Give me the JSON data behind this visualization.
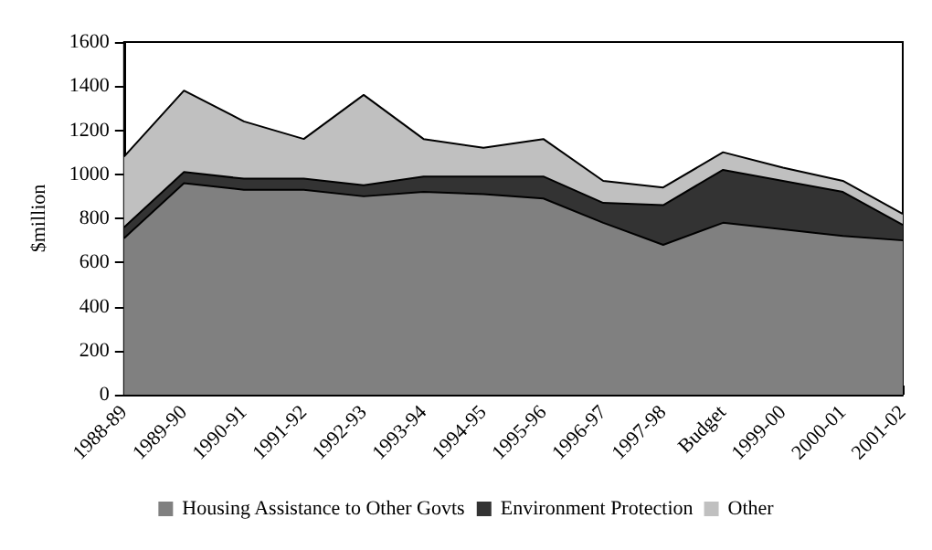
{
  "chart_data": {
    "type": "area",
    "stacked": true,
    "ylabel": "$million",
    "categories": [
      "1988-89",
      "1989-90",
      "1990-91",
      "1991-92",
      "1992-93",
      "1993-94",
      "1994-95",
      "1995-96",
      "1996-97",
      "1997-98",
      "Budget",
      "1999-00",
      "2000-01",
      "2001-02"
    ],
    "series": [
      {
        "name": "Housing Assistance to Other Govts",
        "color": "#808080",
        "values": [
          710,
          960,
          930,
          930,
          900,
          920,
          910,
          890,
          780,
          680,
          780,
          750,
          720,
          700
        ]
      },
      {
        "name": "Environment Protection",
        "color": "#333333",
        "values": [
          50,
          50,
          50,
          50,
          50,
          70,
          80,
          100,
          90,
          180,
          240,
          220,
          200,
          70
        ]
      },
      {
        "name": "Other",
        "color": "#c0c0c0",
        "values": [
          320,
          370,
          260,
          180,
          410,
          170,
          130,
          170,
          100,
          80,
          80,
          60,
          50,
          50
        ]
      }
    ],
    "ylim": [
      0,
      1600
    ],
    "yticks": [
      0,
      200,
      400,
      600,
      800,
      1000,
      1200,
      1400,
      1600
    ],
    "grid": false,
    "legend": "bottom"
  }
}
